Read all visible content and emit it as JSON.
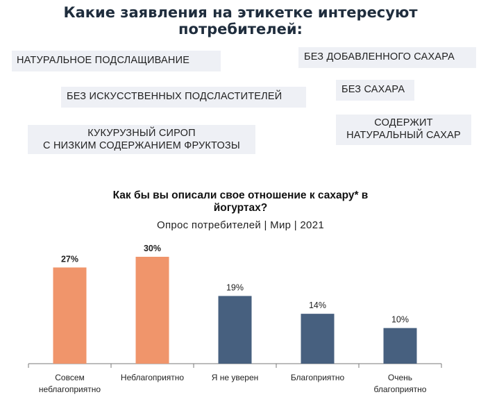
{
  "header": {
    "title_line1": "Какие заявления на этикетке интересуют",
    "title_line2": "потребителей:"
  },
  "claims": {
    "natural_sweetening": "НАТУРАЛЬНОЕ ПОДСЛАЩИВАНИЕ",
    "no_added_sugar": "БЕЗ ДОБАВЛЕННОГО САХАРА",
    "no_artificial_sweeteners": "БЕЗ ИСКУССТВЕННЫХ ПОДСЛАСТИТЕЛЕЙ",
    "no_sugar": "БЕЗ САХАРА",
    "corn_syrup_line1": "КУКУРУЗНЫЙ СИРОП",
    "corn_syrup_line2": "С НИЗКИМ СОДЕРЖАНИЕМ ФРУКТОЗЫ",
    "natural_sugar_line1": "СОДЕРЖИТ",
    "natural_sugar_line2": "НАТУРАЛЬНЫЙ САХАР"
  },
  "colors": {
    "claim_bg": "#eef0f5",
    "negative": "#f0956b",
    "other": "#47607f",
    "axis": "#7a7a7a"
  },
  "chart_data": {
    "type": "bar",
    "title_line1": "Как бы вы описали свое отношение к сахару* в",
    "title_line2": "йогуртах?",
    "subtitle": "Опрос потребителей | Мир | 2021",
    "ylim": [
      0,
      30
    ],
    "grid": false,
    "categories": [
      {
        "label_lines": [
          "Совсем",
          "неблагоприятно"
        ],
        "value": 27,
        "value_label": "27%",
        "color": "#f0956b",
        "bold": true
      },
      {
        "label_lines": [
          "Неблагоприятно"
        ],
        "value": 30,
        "value_label": "30%",
        "color": "#f0956b",
        "bold": true
      },
      {
        "label_lines": [
          "Я не уверен"
        ],
        "value": 19,
        "value_label": "19%",
        "color": "#47607f",
        "bold": false
      },
      {
        "label_lines": [
          "Благоприятно"
        ],
        "value": 14,
        "value_label": "14%",
        "color": "#47607f",
        "bold": false
      },
      {
        "label_lines": [
          "Очень",
          "благоприятно"
        ],
        "value": 10,
        "value_label": "10%",
        "color": "#47607f",
        "bold": false
      }
    ]
  }
}
